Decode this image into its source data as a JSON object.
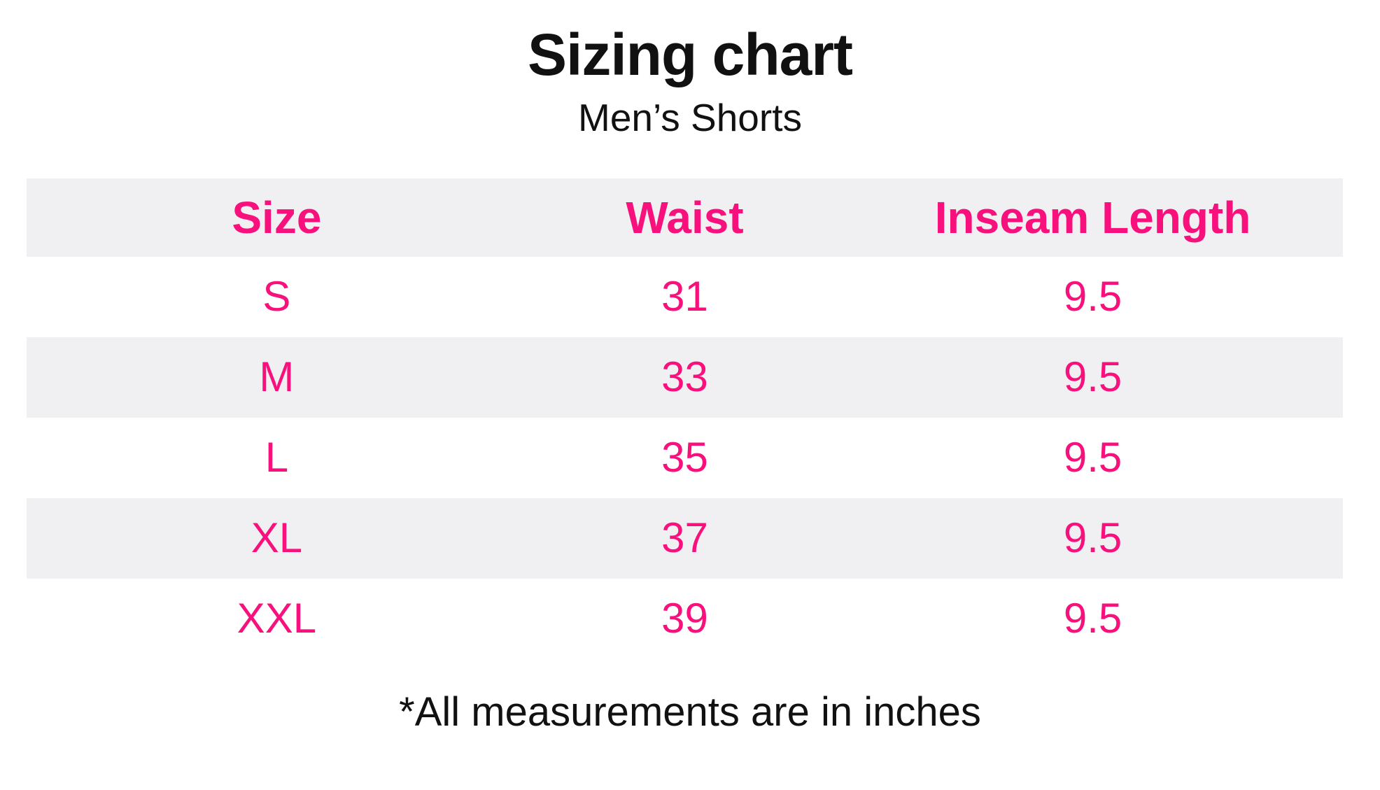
{
  "colors": {
    "accent_pink": "#F8117C",
    "row_band_gray": "#F0F0F2",
    "text_black": "#111111",
    "background": "#FFFFFF"
  },
  "chart_data": {
    "type": "table",
    "title": "Sizing chart",
    "subtitle": "Men’s Shorts",
    "columns": [
      "Size",
      "Waist",
      "Inseam Length"
    ],
    "rows": [
      [
        "S",
        "31",
        "9.5"
      ],
      [
        "M",
        "33",
        "9.5"
      ],
      [
        "L",
        "35",
        "9.5"
      ],
      [
        "XL",
        "37",
        "9.5"
      ],
      [
        "XXL",
        "39",
        "9.5"
      ]
    ],
    "footnote": "*All measurements are in inches",
    "units": "inches",
    "layout": "header row shaded gray, body rows alternate white/gray, all table text pink, headers bold"
  }
}
